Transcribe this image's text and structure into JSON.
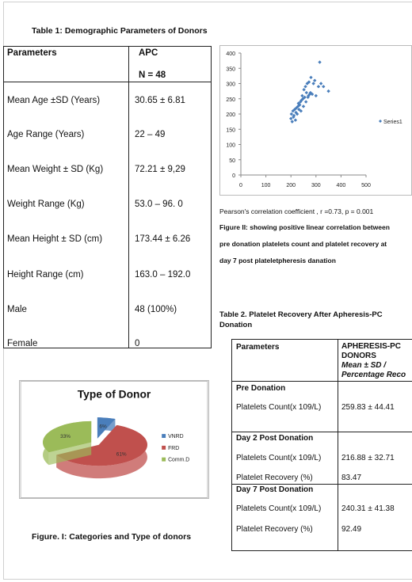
{
  "table1": {
    "caption": "Table 1: Demographic Parameters of Donors",
    "header": {
      "param": "Parameters",
      "group": "APC",
      "n": "N = 48"
    },
    "rows": [
      {
        "label": "Mean Age ±SD  (Years)",
        "value": "30.65 ± 6.81"
      },
      {
        "label": "Age Range (Years)",
        "value": "22 – 49"
      },
      {
        "label": "Mean Weight ± SD (Kg)",
        "value": "72.21 ± 9,29"
      },
      {
        "label": "Weight Range (Kg)",
        "value": "53.0 – 96. 0"
      },
      {
        "label": "Mean Height  ± SD (cm)",
        "value": "173.44 ± 6.26"
      },
      {
        "label": "Height Range (cm)",
        "value": "163.0 – 192.0"
      },
      {
        "label": "Male",
        "value": "48 (100%)"
      },
      {
        "label": "Female",
        "value": "0"
      }
    ]
  },
  "scatter": {
    "caption": "Pearson's correlation coefficient , r =0.73, p = 0.001",
    "figure_note": "Figure II: showing positive linear correlation between pre donation platelets count and platelet recovery at day 7 post plateletpheresis danation",
    "figure_note_lines": [
      "Figure II: showing positive linear correlation between",
      "pre donation platelets count and platelet recovery at",
      "day 7 post plateletpheresis danation"
    ]
  },
  "chart_data": [
    {
      "type": "scatter",
      "series": [
        {
          "name": "Series1",
          "color": "#4a7ebb"
        }
      ],
      "x": [
        200,
        202,
        205,
        208,
        210,
        212,
        215,
        218,
        220,
        222,
        225,
        228,
        230,
        232,
        235,
        238,
        240,
        242,
        245,
        248,
        250,
        252,
        255,
        258,
        260,
        262,
        265,
        268,
        270,
        272,
        275,
        278,
        280,
        285,
        290,
        295,
        300,
        310,
        315,
        320,
        330,
        350
      ],
      "y": [
        185,
        200,
        175,
        210,
        190,
        195,
        215,
        180,
        205,
        220,
        200,
        225,
        235,
        215,
        230,
        240,
        210,
        245,
        260,
        250,
        225,
        280,
        255,
        290,
        240,
        270,
        300,
        255,
        260,
        305,
        265,
        270,
        320,
        265,
        300,
        310,
        260,
        290,
        370,
        300,
        290,
        275
      ],
      "xlim": [
        0,
        500
      ],
      "ylim": [
        0,
        400
      ],
      "xticks": [
        0,
        100,
        200,
        300,
        400,
        500
      ],
      "yticks": [
        0,
        50,
        100,
        150,
        200,
        250,
        300,
        350,
        400
      ],
      "legend": "right"
    },
    {
      "type": "pie",
      "title": "Type of Donor",
      "categories": [
        "VNRD",
        "FRD",
        "Comm.D"
      ],
      "values": [
        6,
        61,
        33
      ],
      "labels": [
        "6%",
        "61%",
        "33%"
      ],
      "colors": [
        "#4a7ebb",
        "#c0504d",
        "#9bbb59"
      ],
      "legend": "right"
    }
  ],
  "table2": {
    "caption_lines": [
      "Table 2. Platelet Recovery After Apheresis-PC",
      "Donation"
    ],
    "header": {
      "param": "Parameters",
      "col_lines": [
        "APHERESIS-PC",
        "DONORS"
      ],
      "sub_lines": [
        "Mean ± SD /",
        "Percentage Reco"
      ]
    },
    "sections": [
      {
        "title": "Pre Donation",
        "rows": [
          {
            "label": "Platelets Count(x 109/L)",
            "value": "259.83 ± 44.41"
          }
        ]
      },
      {
        "title": "Day 2 Post Donation",
        "rows": [
          {
            "label": "Platelets Count(x 109/L)",
            "value": "216.88 ± 32.71"
          },
          {
            "label": "Platelet Recovery (%)",
            "value": "83.47"
          }
        ]
      },
      {
        "title": "Day 7 Post Donation",
        "rows": [
          {
            "label": "Platelets Count(x 109/L)",
            "value": "240.31 ± 41.38"
          },
          {
            "label": "Platelet Recovery (%)",
            "value": "92.49"
          }
        ]
      }
    ]
  },
  "figure1": {
    "caption": "Figure. I: Categories and Type of donors"
  }
}
